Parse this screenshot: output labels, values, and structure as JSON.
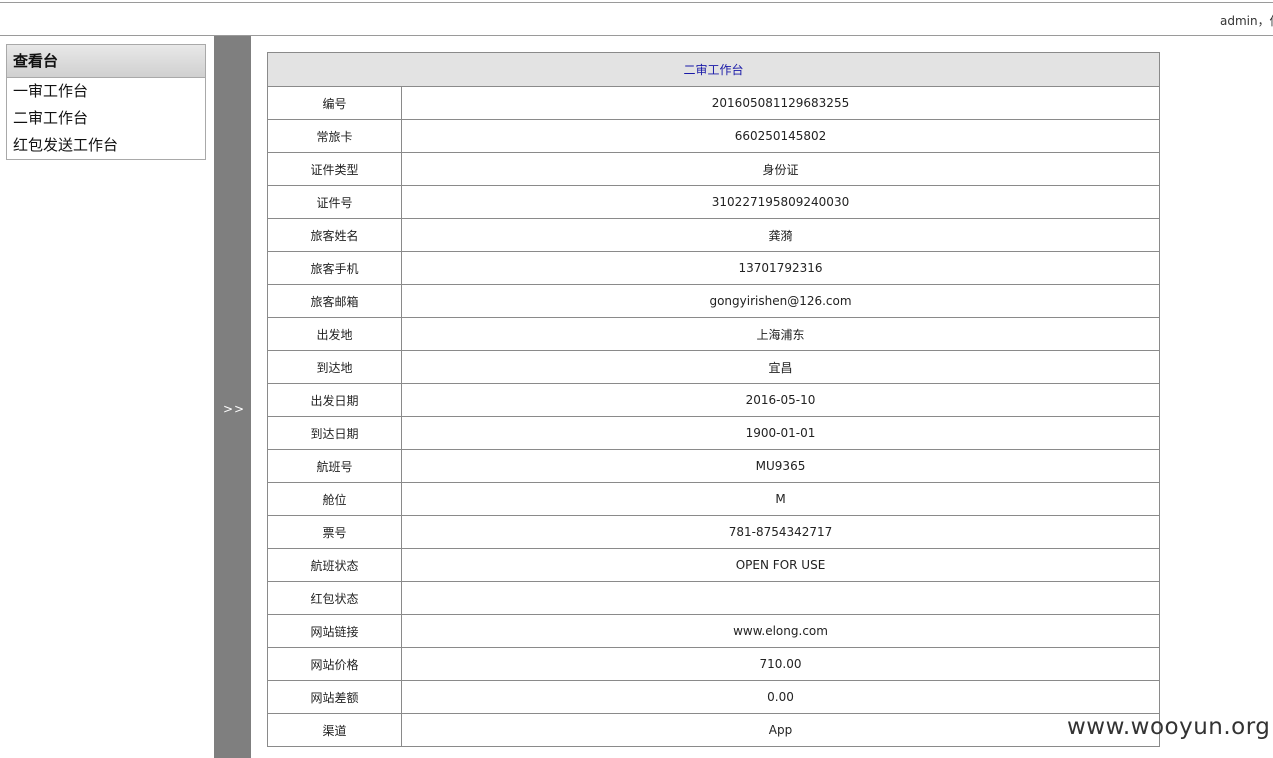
{
  "header": {
    "user_greeting": "admin，你"
  },
  "sidebar": {
    "title": "查看台",
    "items": [
      {
        "label": "一审工作台"
      },
      {
        "label": "二审工作台"
      },
      {
        "label": "红包发送工作台"
      }
    ]
  },
  "splitter": {
    "toggle_label": ">>"
  },
  "detail": {
    "title": "二审工作台",
    "rows": [
      {
        "label": "编号",
        "value": "201605081129683255"
      },
      {
        "label": "常旅卡",
        "value": "660250145802"
      },
      {
        "label": "证件类型",
        "value": "身份证"
      },
      {
        "label": "证件号",
        "value": "310227195809240030"
      },
      {
        "label": "旅客姓名",
        "value": "龚漪"
      },
      {
        "label": "旅客手机",
        "value": "13701792316"
      },
      {
        "label": "旅客邮箱",
        "value": "gongyirishen@126.com"
      },
      {
        "label": "出发地",
        "value": "上海浦东"
      },
      {
        "label": "到达地",
        "value": "宜昌"
      },
      {
        "label": "出发日期",
        "value": "2016-05-10"
      },
      {
        "label": "到达日期",
        "value": "1900-01-01"
      },
      {
        "label": "航班号",
        "value": "MU9365"
      },
      {
        "label": "舱位",
        "value": "M"
      },
      {
        "label": "票号",
        "value": "781-8754342717"
      },
      {
        "label": "航班状态",
        "value": "OPEN FOR USE"
      },
      {
        "label": "红包状态",
        "value": ""
      },
      {
        "label": "网站链接",
        "value": "www.elong.com"
      },
      {
        "label": "网站价格",
        "value": "710.00"
      },
      {
        "label": "网站差额",
        "value": "0.00"
      },
      {
        "label": "渠道",
        "value": "App"
      }
    ]
  },
  "watermark": "www.wooyun.org"
}
